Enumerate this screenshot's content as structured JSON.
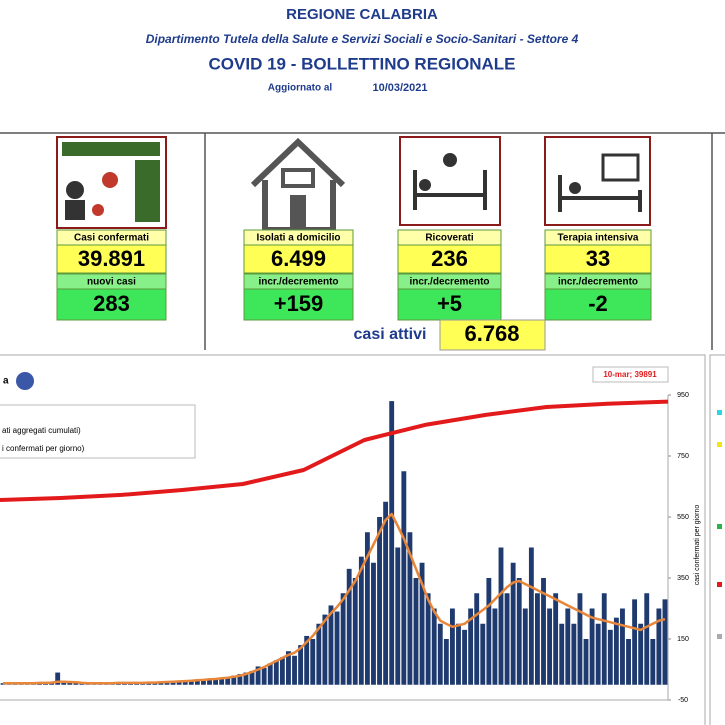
{
  "header": {
    "title": "REGIONE CALABRIA",
    "subtitle": "Dipartimento Tutela della Salute e Servizi Sociali e Socio-Sanitari - Settore 4",
    "bulletin": "COVID 19 - BOLLETTINO REGIONALE",
    "updated_label": "Aggiornato al",
    "updated_date": "10/03/2021"
  },
  "cards": [
    {
      "label": "Casi confermati",
      "value": "39.891",
      "sub_label": "nuovi casi",
      "sub_value": "283"
    },
    {
      "label": "Isolati a domicilio",
      "value": "6.499",
      "sub_label": "incr./decremento",
      "sub_value": "+159"
    },
    {
      "label": "Ricoverati",
      "value": "236",
      "sub_label": "incr./decremento",
      "sub_value": "+5"
    },
    {
      "label": "Terapia intensiva",
      "value": "33",
      "sub_label": "incr./decremento",
      "sub_value": "-2"
    }
  ],
  "active": {
    "label": "casi attivi",
    "value": "6.768"
  },
  "chart_data": {
    "type": "bar",
    "title": "a",
    "y_label": "casi confermati per giorno",
    "annotation": "10-mar; 39891",
    "ylim": [
      -50,
      950
    ],
    "yticks": [
      -50,
      150,
      350,
      550,
      750,
      950
    ],
    "y2lim": [
      -10000,
      41000
    ],
    "series": [
      {
        "type": "bar",
        "name": "i confermati per giorno)",
        "color": "#1f3a6e",
        "values": [
          5,
          3,
          4,
          6,
          2,
          5,
          8,
          4,
          10,
          40,
          8,
          6,
          5,
          4,
          6,
          3,
          7,
          5,
          4,
          6,
          8,
          5,
          4,
          7,
          6,
          9,
          8,
          10,
          12,
          9,
          15,
          12,
          18,
          14,
          20,
          16,
          22,
          25,
          30,
          35,
          40,
          45,
          60,
          55,
          70,
          80,
          90,
          110,
          95,
          130,
          160,
          150,
          200,
          230,
          260,
          240,
          300,
          380,
          350,
          420,
          500,
          400,
          550,
          600,
          930,
          450,
          700,
          500,
          350,
          400,
          300,
          250,
          200,
          150,
          250,
          200,
          180,
          250,
          300,
          200,
          350,
          250,
          450,
          300,
          400,
          350,
          250,
          450,
          300,
          350,
          250,
          300,
          200,
          250,
          200,
          300,
          150,
          250,
          200,
          300,
          180,
          220,
          250,
          150,
          280,
          200,
          300,
          150,
          250,
          280
        ]
      },
      {
        "type": "line",
        "color": "#e8873a",
        "values": [
          5,
          5,
          5,
          5,
          5,
          5,
          6,
          6,
          7,
          10,
          10,
          9,
          8,
          6,
          5,
          5,
          5,
          5,
          5,
          6,
          6,
          6,
          6,
          6,
          7,
          7,
          8,
          9,
          10,
          11,
          12,
          13,
          15,
          16,
          18,
          19,
          21,
          23,
          26,
          30,
          35,
          42,
          50,
          58,
          68,
          78,
          88,
          98,
          105,
          120,
          140,
          160,
          185,
          210,
          235,
          255,
          280,
          310,
          340,
          380,
          420,
          460,
          500,
          540,
          560,
          520,
          480,
          430,
          380,
          330,
          280,
          240,
          210,
          200,
          190,
          195,
          200,
          215,
          230,
          245,
          260,
          280,
          300,
          320,
          335,
          340,
          330,
          320,
          310,
          300,
          290,
          280,
          270,
          260,
          250,
          240,
          230,
          220,
          215,
          210,
          205,
          200,
          195,
          190,
          185,
          180,
          190,
          200,
          210,
          215
        ]
      },
      {
        "type": "line",
        "axis": "y2",
        "name": "ati aggregati cumulati)",
        "color": "#e31a1c",
        "values": [
          23440,
          23780,
          24290,
          25120,
          26120,
          28460,
          33480,
          36000,
          37670,
          39000,
          39550,
          39891
        ]
      }
    ]
  }
}
